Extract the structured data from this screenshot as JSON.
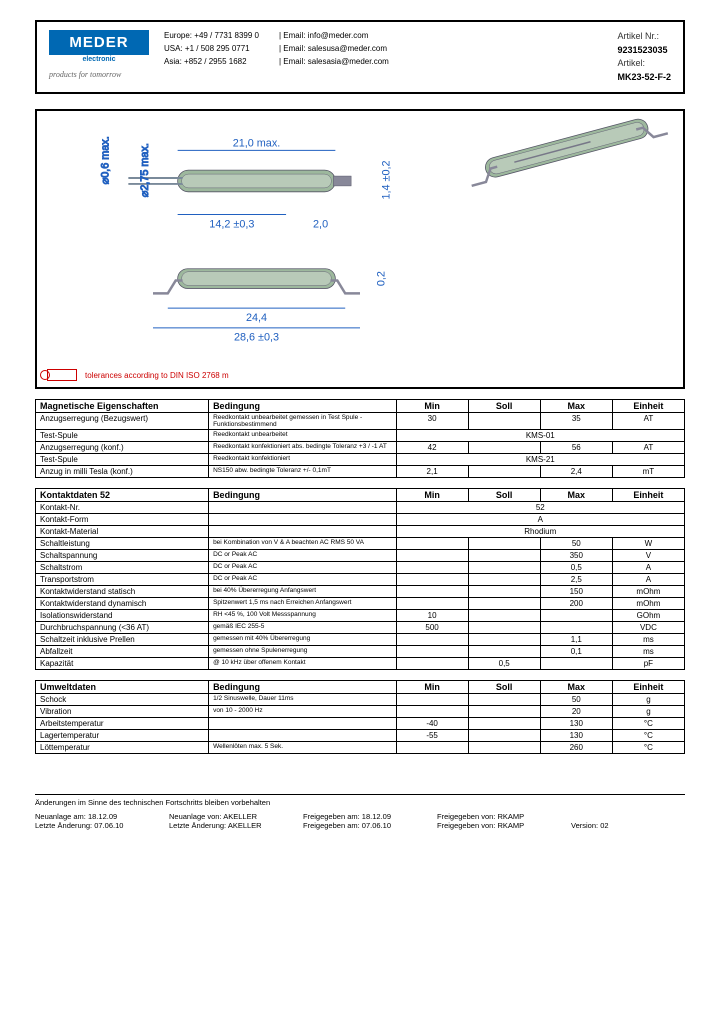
{
  "header": {
    "logo_main": "MEDER",
    "logo_sub": "electronic",
    "tagline": "products for tomorrow",
    "contacts": {
      "europe_label": "Europe:",
      "europe_phone": "+49 / 7731 8399 0",
      "usa_label": "USA:",
      "usa_phone": "+1 / 508 295 0771",
      "asia_label": "Asia:",
      "asia_phone": "+852 / 2955 1682",
      "email_label": "| Email:",
      "email_info": "info@meder.com",
      "email_salesusa": "salesusa@meder.com",
      "email_salesasia": "salesasia@meder.com"
    },
    "article": {
      "nr_label": "Artikel Nr.:",
      "nr_value": "9231523035",
      "art_label": "Artikel:",
      "art_value": "MK23-52-F-2"
    }
  },
  "drawing": {
    "dims": {
      "diam1": "⌀0,6 max.",
      "diam2": "⌀2,75 max.",
      "len_21": "21,0 max.",
      "len_142": "14,2 ±0,3",
      "len_20": "2,0",
      "len_14": "1,4 ±0,2",
      "len_244": "24,4",
      "len_286": "28,6 ±0,3",
      "len_02": "0,2"
    },
    "tolerance_text": "tolerances according to DIN ISO 2768 m"
  },
  "table1": {
    "head": [
      "Magnetische Eigenschaften",
      "Bedingung",
      "Min",
      "Soll",
      "Max",
      "Einheit"
    ],
    "rows": [
      {
        "p": "Anzugserregung (Bezugswert)",
        "c": "Reedkontakt unbearbeitet\ngemessen in Test Spule - Funktionsbestimmend",
        "min": "30",
        "soll": "",
        "max": "35",
        "e": "AT"
      },
      {
        "p": "Test-Spule",
        "c": "Reedkontakt unbearbeitet",
        "span": "KMS-01"
      },
      {
        "p": "Anzugserregung (konf.)",
        "c": "Reedkontakt konfektioniert\nabs. bedingte Toleranz +3 / -1 AT",
        "min": "42",
        "soll": "",
        "max": "56",
        "e": "AT"
      },
      {
        "p": "Test-Spule",
        "c": "Reedkontakt konfektioniert",
        "span": "KMS-21"
      },
      {
        "p": "Anzug in milli Tesla (konf.)",
        "c": "NS150\nabw. bedingte Toleranz +/- 0,1mT",
        "min": "2,1",
        "soll": "",
        "max": "2,4",
        "e": "mT"
      }
    ]
  },
  "table2": {
    "head": [
      "Kontaktdaten  52",
      "Bedingung",
      "Min",
      "Soll",
      "Max",
      "Einheit"
    ],
    "rows": [
      {
        "p": "Kontakt-Nr.",
        "c": "",
        "span": "52"
      },
      {
        "p": "Kontakt-Form",
        "c": "",
        "span": "A"
      },
      {
        "p": "Kontakt-Material",
        "c": "",
        "span": "Rhodium"
      },
      {
        "p": "Schaltleistung",
        "c": "bei Kombination von V & A beachten\nAC RMS 50 VA",
        "min": "",
        "soll": "",
        "max": "50",
        "e": "W"
      },
      {
        "p": "Schaltspannung",
        "c": "DC or Peak AC",
        "min": "",
        "soll": "",
        "max": "350",
        "e": "V"
      },
      {
        "p": "Schaltstrom",
        "c": "DC or Peak AC",
        "min": "",
        "soll": "",
        "max": "0,5",
        "e": "A"
      },
      {
        "p": "Transportstrom",
        "c": "DC or Peak AC",
        "min": "",
        "soll": "",
        "max": "2,5",
        "e": "A"
      },
      {
        "p": "Kontaktwiderstand statisch",
        "c": "bei 40% Übererregung\nAnfangswert",
        "min": "",
        "soll": "",
        "max": "150",
        "e": "mOhm"
      },
      {
        "p": "Kontaktwiderstand dynamisch",
        "c": "Spitzenwert 1,5 ms nach Erreichen\nAnfangswert",
        "min": "",
        "soll": "",
        "max": "200",
        "e": "mOhm"
      },
      {
        "p": "Isolationswiderstand",
        "c": "RH <45 %, 100 Volt Messspannung",
        "min": "10",
        "soll": "",
        "max": "",
        "e": "GOhm"
      },
      {
        "p": "Durchbruchspannung (<36 AT)",
        "c": "gemäß IEC 255-5",
        "min": "500",
        "soll": "",
        "max": "",
        "e": "VDC"
      },
      {
        "p": "Schaltzeit inklusive Prellen",
        "c": "gemessen mit 40% Übererregung",
        "min": "",
        "soll": "",
        "max": "1,1",
        "e": "ms"
      },
      {
        "p": "Abfallzeit",
        "c": "gemessen ohne Spulenerregung",
        "min": "",
        "soll": "",
        "max": "0,1",
        "e": "ms"
      },
      {
        "p": "Kapazität",
        "c": "@ 10 kHz über offenem Kontakt",
        "min": "",
        "soll": "0,5",
        "max": "",
        "e": "pF"
      }
    ]
  },
  "table3": {
    "head": [
      "Umweltdaten",
      "Bedingung",
      "Min",
      "Soll",
      "Max",
      "Einheit"
    ],
    "rows": [
      {
        "p": "Schock",
        "c": "1/2 Sinuswelle, Dauer 11ms",
        "min": "",
        "soll": "",
        "max": "50",
        "e": "g"
      },
      {
        "p": "Vibration",
        "c": "von 10 - 2000 Hz",
        "min": "",
        "soll": "",
        "max": "20",
        "e": "g"
      },
      {
        "p": "Arbeitstemperatur",
        "c": "",
        "min": "-40",
        "soll": "",
        "max": "130",
        "e": "°C"
      },
      {
        "p": "Lagertemperatur",
        "c": "",
        "min": "-55",
        "soll": "",
        "max": "130",
        "e": "°C"
      },
      {
        "p": "Löttemperatur",
        "c": "Wellenlöten max. 5 Sek.",
        "min": "",
        "soll": "",
        "max": "260",
        "e": "°C"
      }
    ]
  },
  "footer": {
    "note": "Änderungen im Sinne des technischen Fortschritts bleiben vorbehalten",
    "r1": {
      "a": "Neuanlage am:",
      "av": "18.12.09",
      "b": "Neuanlage von:",
      "bv": "AKELLER",
      "c": "Freigegeben am:",
      "cv": "18.12.09",
      "d": "Freigegeben von:",
      "dv": "RKAMP"
    },
    "r2": {
      "a": "Letzte Änderung:",
      "av": "07.06.10",
      "b": "Letzte Änderung:",
      "bv": "AKELLER",
      "c": "Freigegeben am:",
      "cv": "07.06.10",
      "d": "Freigegeben von:",
      "dv": "RKAMP",
      "e": "Version:",
      "ev": "02"
    }
  }
}
